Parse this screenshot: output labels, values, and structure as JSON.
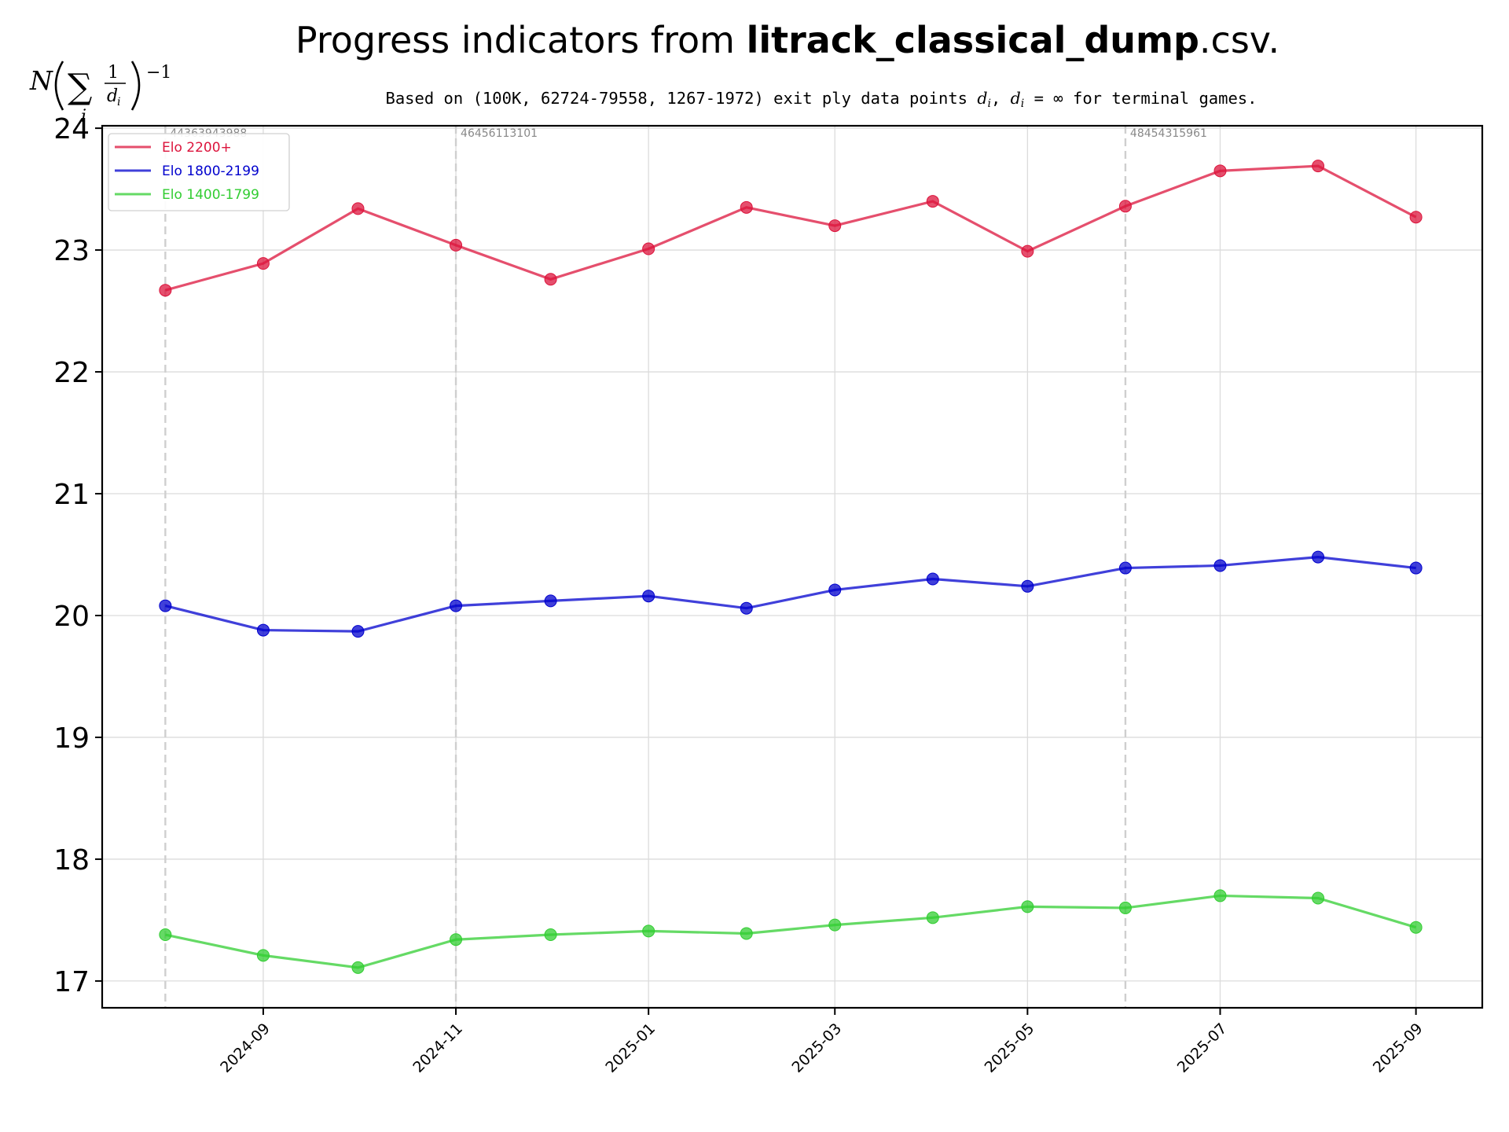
{
  "chart_data": {
    "type": "line",
    "title": {
      "prefix": "Progress indicators from ",
      "bold": "litrack_classical_dump",
      "suffix": ".csv."
    },
    "subtitle_parts": [
      {
        "t": "Based on (100K, 62724-79558, 1267-1972) exit ply data points ",
        "i": false
      },
      {
        "t": "d",
        "i": true
      },
      {
        "t": "i",
        "i": true,
        "sub": true
      },
      {
        "t": ", ",
        "i": false
      },
      {
        "t": "d",
        "i": true
      },
      {
        "t": "i",
        "i": true,
        "sub": true
      },
      {
        "t": " = ∞ for terminal games.",
        "i": false
      }
    ],
    "ylabel": {
      "N": "N",
      "sum": "∑",
      "index": "i",
      "num": "1",
      "den": "d",
      "den_sub": "i",
      "exp": "−1"
    },
    "x": [
      "2024-08",
      "2024-09",
      "2024-10",
      "2024-11",
      "2024-12",
      "2025-01",
      "2025-02",
      "2025-03",
      "2025-04",
      "2025-05",
      "2025-06",
      "2025-07",
      "2025-08",
      "2025-09"
    ],
    "x_ticks": [
      "2024-09",
      "2024-11",
      "2025-01",
      "2025-03",
      "2025-05",
      "2025-07",
      "2025-09"
    ],
    "y_ticks": [
      17,
      18,
      19,
      20,
      21,
      22,
      23,
      24
    ],
    "ylim": [
      16.78,
      24.02
    ],
    "xlim": [
      "2024-07-12",
      "2025-09-22"
    ],
    "grid": true,
    "legend_position": "top-left",
    "series": [
      {
        "name": "Elo 2200+",
        "color": "#dc143c",
        "values": [
          22.67,
          22.89,
          23.34,
          23.04,
          22.76,
          23.01,
          23.35,
          23.2,
          23.4,
          22.99,
          23.36,
          23.65,
          23.69,
          23.27
        ]
      },
      {
        "name": "Elo 1800-2199",
        "color": "#0000cd",
        "values": [
          20.08,
          19.88,
          19.87,
          20.08,
          20.12,
          20.16,
          20.06,
          20.21,
          20.3,
          20.24,
          20.39,
          20.41,
          20.48,
          20.39
        ]
      },
      {
        "name": "Elo 1400-1799",
        "color": "#32cd32",
        "values": [
          17.38,
          17.21,
          17.11,
          17.34,
          17.38,
          17.41,
          17.39,
          17.46,
          17.52,
          17.61,
          17.6,
          17.7,
          17.68,
          17.44
        ]
      }
    ],
    "markers": [
      {
        "x": "2024-08",
        "label": "44363943988"
      },
      {
        "x": "2024-11",
        "label": "46456113101"
      },
      {
        "x": "2025-06",
        "label": "48454315961"
      }
    ]
  }
}
